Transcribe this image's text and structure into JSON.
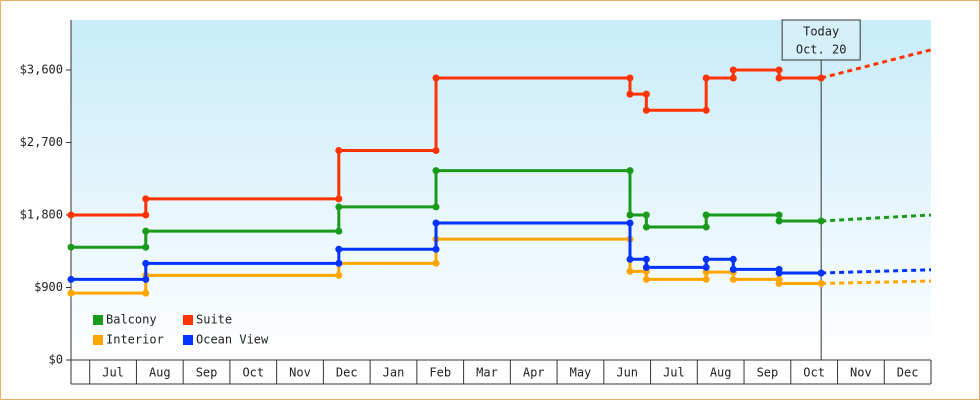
{
  "chart_data": {
    "type": "line",
    "annotation": {
      "x": 15.65,
      "lines": [
        "Today",
        "Oct. 20"
      ]
    },
    "xlim": [
      -0.4,
      18
    ],
    "xticks": [
      {
        "value": 0.5,
        "label": "Jul"
      },
      {
        "value": 1.5,
        "label": "Aug"
      },
      {
        "value": 2.5,
        "label": "Sep"
      },
      {
        "value": 3.5,
        "label": "Oct"
      },
      {
        "value": 4.5,
        "label": "Nov"
      },
      {
        "value": 5.5,
        "label": "Dec"
      },
      {
        "value": 6.5,
        "label": "Jan"
      },
      {
        "value": 7.5,
        "label": "Feb"
      },
      {
        "value": 8.5,
        "label": "Mar"
      },
      {
        "value": 9.5,
        "label": "Apr"
      },
      {
        "value": 10.5,
        "label": "May"
      },
      {
        "value": 11.5,
        "label": "Jun"
      },
      {
        "value": 12.5,
        "label": "Jul"
      },
      {
        "value": 13.5,
        "label": "Aug"
      },
      {
        "value": 14.5,
        "label": "Sep"
      },
      {
        "value": 15.5,
        "label": "Oct"
      },
      {
        "value": 16.5,
        "label": "Nov"
      },
      {
        "value": 17.5,
        "label": "Dec"
      }
    ],
    "ylim": [
      0,
      4220
    ],
    "yticks": [
      {
        "value": 0,
        "label": "$0"
      },
      {
        "value": 900,
        "label": "$900"
      },
      {
        "value": 1800,
        "label": "$1,800"
      },
      {
        "value": 2700,
        "label": "$2,700"
      },
      {
        "value": 3600,
        "label": "$3,600"
      }
    ],
    "grid": false,
    "series": [
      {
        "name": "Balcony",
        "color": "#1a9a1a",
        "x": [
          -0.4,
          1.2,
          1.2,
          5.33,
          5.33,
          7.41,
          7.41,
          11.56,
          11.56,
          11.91,
          11.91,
          13.19,
          13.19,
          14.75,
          14.75,
          15.65
        ],
        "values": [
          1400,
          1400,
          1600,
          1600,
          1900,
          1900,
          2350,
          2350,
          1800,
          1800,
          1650,
          1650,
          1800,
          1800,
          1725,
          1725
        ],
        "forecast_x": [
          15.65,
          18.0
        ],
        "forecast_values": [
          1725,
          1800
        ]
      },
      {
        "name": "Suite",
        "color": "#ff3300",
        "x": [
          -0.4,
          1.2,
          1.2,
          5.33,
          5.33,
          7.41,
          7.41,
          11.56,
          11.56,
          11.91,
          11.91,
          13.19,
          13.19,
          13.77,
          13.77,
          14.75,
          14.75,
          15.65
        ],
        "values": [
          1800,
          1800,
          2000,
          2000,
          2600,
          2600,
          3500,
          3500,
          3300,
          3300,
          3100,
          3100,
          3500,
          3500,
          3600,
          3600,
          3500,
          3500
        ],
        "forecast_x": [
          15.65,
          18.0
        ],
        "forecast_values": [
          3500,
          3850
        ]
      },
      {
        "name": "Interior",
        "color": "#ffa500",
        "x": [
          -0.4,
          1.2,
          1.2,
          5.33,
          5.33,
          7.41,
          7.41,
          11.56,
          11.56,
          11.91,
          11.91,
          13.19,
          13.19,
          13.77,
          13.77,
          14.75,
          14.75,
          15.65
        ],
        "values": [
          830,
          830,
          1050,
          1050,
          1200,
          1200,
          1500,
          1500,
          1100,
          1100,
          1000,
          1000,
          1090,
          1090,
          1000,
          1000,
          950,
          950
        ],
        "forecast_x": [
          15.65,
          18.0
        ],
        "forecast_values": [
          950,
          980
        ]
      },
      {
        "name": "Ocean View",
        "color": "#0033ff",
        "x": [
          -0.4,
          1.2,
          1.2,
          5.33,
          5.33,
          7.41,
          7.41,
          11.56,
          11.56,
          11.91,
          11.91,
          13.19,
          13.19,
          13.77,
          13.77,
          14.75,
          14.75,
          15.65
        ],
        "values": [
          1000,
          1000,
          1200,
          1200,
          1375,
          1375,
          1700,
          1700,
          1250,
          1250,
          1150,
          1150,
          1250,
          1250,
          1125,
          1125,
          1080,
          1080
        ],
        "forecast_x": [
          15.65,
          18.0
        ],
        "forecast_values": [
          1080,
          1120
        ]
      }
    ]
  }
}
